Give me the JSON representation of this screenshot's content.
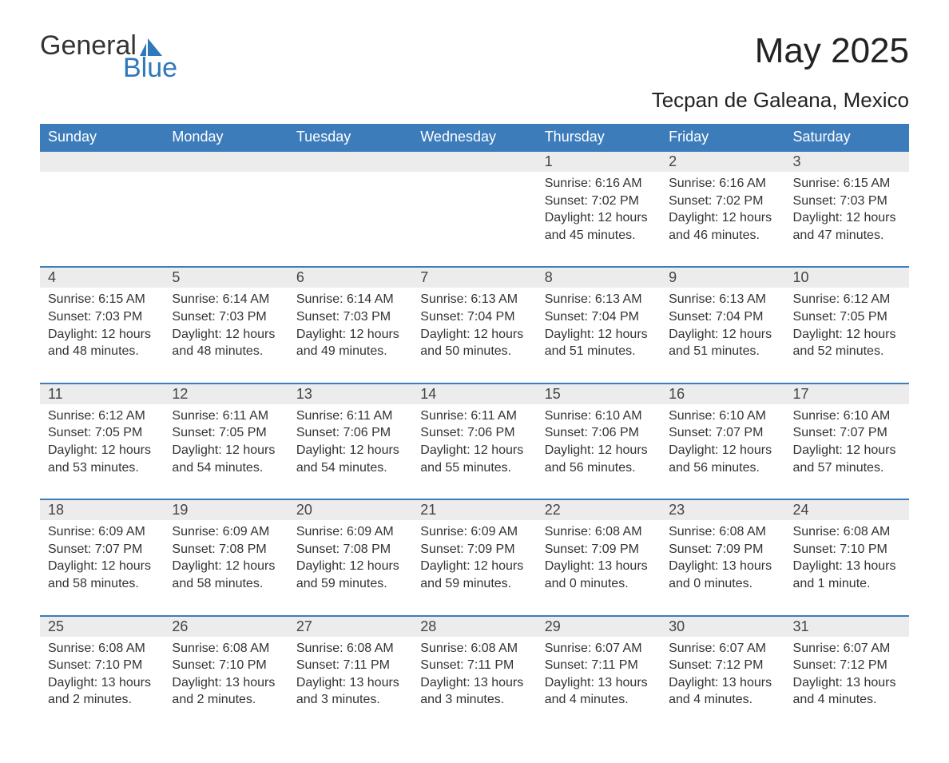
{
  "logo": {
    "text_top": "General",
    "text_bottom": "Blue",
    "flag_color": "#2f78bb"
  },
  "header": {
    "month_title": "May 2025",
    "location": "Tecpan de Galeana, Mexico"
  },
  "colors": {
    "header_bg": "#3d7cba",
    "header_text": "#ffffff",
    "daynum_bg": "#ececec",
    "daynum_text": "#444444",
    "body_text": "#333333",
    "rule": "#3d7cba",
    "logo_blue": "#2f78bb",
    "page_bg": "#ffffff"
  },
  "typography": {
    "month_title_fontsize": 44,
    "location_fontsize": 26,
    "dayhead_fontsize": 18,
    "daynum_fontsize": 18,
    "body_fontsize": 16,
    "font_family": "Arial"
  },
  "day_headers": [
    "Sunday",
    "Monday",
    "Tuesday",
    "Wednesday",
    "Thursday",
    "Friday",
    "Saturday"
  ],
  "weeks": [
    {
      "days": [
        null,
        null,
        null,
        null,
        {
          "num": "1",
          "sunrise": "6:16 AM",
          "sunset": "7:02 PM",
          "daylight": "12 hours and 45 minutes."
        },
        {
          "num": "2",
          "sunrise": "6:16 AM",
          "sunset": "7:02 PM",
          "daylight": "12 hours and 46 minutes."
        },
        {
          "num": "3",
          "sunrise": "6:15 AM",
          "sunset": "7:03 PM",
          "daylight": "12 hours and 47 minutes."
        }
      ]
    },
    {
      "days": [
        {
          "num": "4",
          "sunrise": "6:15 AM",
          "sunset": "7:03 PM",
          "daylight": "12 hours and 48 minutes."
        },
        {
          "num": "5",
          "sunrise": "6:14 AM",
          "sunset": "7:03 PM",
          "daylight": "12 hours and 48 minutes."
        },
        {
          "num": "6",
          "sunrise": "6:14 AM",
          "sunset": "7:03 PM",
          "daylight": "12 hours and 49 minutes."
        },
        {
          "num": "7",
          "sunrise": "6:13 AM",
          "sunset": "7:04 PM",
          "daylight": "12 hours and 50 minutes."
        },
        {
          "num": "8",
          "sunrise": "6:13 AM",
          "sunset": "7:04 PM",
          "daylight": "12 hours and 51 minutes."
        },
        {
          "num": "9",
          "sunrise": "6:13 AM",
          "sunset": "7:04 PM",
          "daylight": "12 hours and 51 minutes."
        },
        {
          "num": "10",
          "sunrise": "6:12 AM",
          "sunset": "7:05 PM",
          "daylight": "12 hours and 52 minutes."
        }
      ]
    },
    {
      "days": [
        {
          "num": "11",
          "sunrise": "6:12 AM",
          "sunset": "7:05 PM",
          "daylight": "12 hours and 53 minutes."
        },
        {
          "num": "12",
          "sunrise": "6:11 AM",
          "sunset": "7:05 PM",
          "daylight": "12 hours and 54 minutes."
        },
        {
          "num": "13",
          "sunrise": "6:11 AM",
          "sunset": "7:06 PM",
          "daylight": "12 hours and 54 minutes."
        },
        {
          "num": "14",
          "sunrise": "6:11 AM",
          "sunset": "7:06 PM",
          "daylight": "12 hours and 55 minutes."
        },
        {
          "num": "15",
          "sunrise": "6:10 AM",
          "sunset": "7:06 PM",
          "daylight": "12 hours and 56 minutes."
        },
        {
          "num": "16",
          "sunrise": "6:10 AM",
          "sunset": "7:07 PM",
          "daylight": "12 hours and 56 minutes."
        },
        {
          "num": "17",
          "sunrise": "6:10 AM",
          "sunset": "7:07 PM",
          "daylight": "12 hours and 57 minutes."
        }
      ]
    },
    {
      "days": [
        {
          "num": "18",
          "sunrise": "6:09 AM",
          "sunset": "7:07 PM",
          "daylight": "12 hours and 58 minutes."
        },
        {
          "num": "19",
          "sunrise": "6:09 AM",
          "sunset": "7:08 PM",
          "daylight": "12 hours and 58 minutes."
        },
        {
          "num": "20",
          "sunrise": "6:09 AM",
          "sunset": "7:08 PM",
          "daylight": "12 hours and 59 minutes."
        },
        {
          "num": "21",
          "sunrise": "6:09 AM",
          "sunset": "7:09 PM",
          "daylight": "12 hours and 59 minutes."
        },
        {
          "num": "22",
          "sunrise": "6:08 AM",
          "sunset": "7:09 PM",
          "daylight": "13 hours and 0 minutes."
        },
        {
          "num": "23",
          "sunrise": "6:08 AM",
          "sunset": "7:09 PM",
          "daylight": "13 hours and 0 minutes."
        },
        {
          "num": "24",
          "sunrise": "6:08 AM",
          "sunset": "7:10 PM",
          "daylight": "13 hours and 1 minute."
        }
      ]
    },
    {
      "days": [
        {
          "num": "25",
          "sunrise": "6:08 AM",
          "sunset": "7:10 PM",
          "daylight": "13 hours and 2 minutes."
        },
        {
          "num": "26",
          "sunrise": "6:08 AM",
          "sunset": "7:10 PM",
          "daylight": "13 hours and 2 minutes."
        },
        {
          "num": "27",
          "sunrise": "6:08 AM",
          "sunset": "7:11 PM",
          "daylight": "13 hours and 3 minutes."
        },
        {
          "num": "28",
          "sunrise": "6:08 AM",
          "sunset": "7:11 PM",
          "daylight": "13 hours and 3 minutes."
        },
        {
          "num": "29",
          "sunrise": "6:07 AM",
          "sunset": "7:11 PM",
          "daylight": "13 hours and 4 minutes."
        },
        {
          "num": "30",
          "sunrise": "6:07 AM",
          "sunset": "7:12 PM",
          "daylight": "13 hours and 4 minutes."
        },
        {
          "num": "31",
          "sunrise": "6:07 AM",
          "sunset": "7:12 PM",
          "daylight": "13 hours and 4 minutes."
        }
      ]
    }
  ],
  "labels": {
    "sunrise_prefix": "Sunrise: ",
    "sunset_prefix": "Sunset: ",
    "daylight_prefix": "Daylight: "
  }
}
